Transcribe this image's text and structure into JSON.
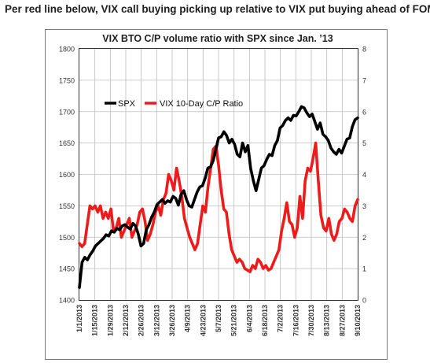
{
  "headline": "Per red line below, VIX call buying picking up relative to VIX put buying ahead of FOMC",
  "chart_data": {
    "type": "line",
    "title": "VIX BTO C/P volume ratio with SPX since Jan. ’13",
    "x_tick_labels": [
      "1/1/2013",
      "1/15/2013",
      "1/29/2013",
      "2/12/2013",
      "2/26/2013",
      "3/12/2013",
      "3/26/2013",
      "4/9/2013",
      "4/23/2013",
      "5/7/2013",
      "5/21/2013",
      "6/4/2013",
      "6/18/2013",
      "7/2/2013",
      "7/16/2013",
      "7/30/2013",
      "8/13/2013",
      "8/27/2013",
      "9/10/2013"
    ],
    "y_left_ticks": [
      1400,
      1450,
      1500,
      1550,
      1600,
      1650,
      1700,
      1750,
      1800
    ],
    "y_right_ticks": [
      0,
      1,
      2,
      3,
      4,
      5,
      6,
      7,
      8
    ],
    "y_left_range": [
      1400,
      1800
    ],
    "y_right_range": [
      0,
      8
    ],
    "grid": true,
    "legend_position": "upper-left",
    "series": [
      {
        "name": "SPX",
        "axis": "left",
        "color": "#000000",
        "x_range": [
          0,
          18
        ],
        "values": [
          1420,
          1460,
          1468,
          1464,
          1472,
          1478,
          1486,
          1490,
          1494,
          1498,
          1504,
          1502,
          1510,
          1508,
          1514,
          1512,
          1518,
          1520,
          1516,
          1513,
          1522,
          1518,
          1505,
          1486,
          1490,
          1512,
          1520,
          1532,
          1540,
          1552,
          1556,
          1560,
          1554,
          1558,
          1556,
          1565,
          1562,
          1551,
          1568,
          1574,
          1560,
          1550,
          1548,
          1560,
          1572,
          1580,
          1582,
          1594,
          1610,
          1612,
          1622,
          1640,
          1658,
          1660,
          1668,
          1662,
          1650,
          1656,
          1648,
          1632,
          1628,
          1650,
          1636,
          1646,
          1610,
          1590,
          1574,
          1592,
          1610,
          1614,
          1624,
          1632,
          1630,
          1646,
          1654,
          1674,
          1678,
          1686,
          1690,
          1686,
          1694,
          1693,
          1700,
          1708,
          1706,
          1698,
          1692,
          1696,
          1684,
          1672,
          1682,
          1664,
          1660,
          1654,
          1642,
          1636,
          1632,
          1640,
          1634,
          1645,
          1656,
          1658,
          1676,
          1687,
          1690
        ]
      },
      {
        "name": "VIX 10-Day C/P Ratio",
        "axis": "right",
        "color": "#ee1b1b",
        "x_range": [
          0,
          18
        ],
        "values": [
          1.8,
          1.7,
          1.8,
          2.4,
          3.0,
          2.9,
          3.0,
          2.8,
          3.0,
          2.6,
          2.8,
          2.6,
          2.9,
          2.2,
          2.3,
          2.6,
          2.0,
          2.2,
          2.4,
          2.6,
          2.0,
          2.2,
          2.4,
          2.8,
          2.9,
          2.5,
          1.9,
          2.1,
          2.4,
          2.8,
          3.0,
          2.7,
          3.2,
          3.4,
          4.0,
          3.8,
          3.5,
          4.2,
          3.8,
          3.3,
          2.6,
          2.3,
          2.0,
          1.8,
          1.6,
          1.8,
          2.4,
          3.0,
          2.8,
          3.6,
          4.2,
          4.8,
          4.9,
          4.3,
          3.5,
          2.9,
          2.8,
          2.1,
          1.6,
          1.4,
          1.2,
          1.3,
          1.2,
          1.0,
          0.95,
          0.9,
          1.1,
          1.0,
          1.3,
          1.2,
          1.0,
          1.1,
          0.95,
          1.0,
          1.2,
          1.4,
          1.6,
          2.2,
          2.6,
          3.1,
          2.5,
          2.4,
          2.0,
          2.3,
          3.3,
          2.6,
          3.8,
          4.2,
          4.1,
          4.5,
          5.0,
          3.8,
          2.7,
          2.3,
          2.2,
          2.6,
          2.1,
          1.9,
          2.1,
          2.5,
          2.6,
          2.9,
          2.8,
          2.6,
          2.5,
          3.0,
          3.2
        ]
      }
    ]
  }
}
